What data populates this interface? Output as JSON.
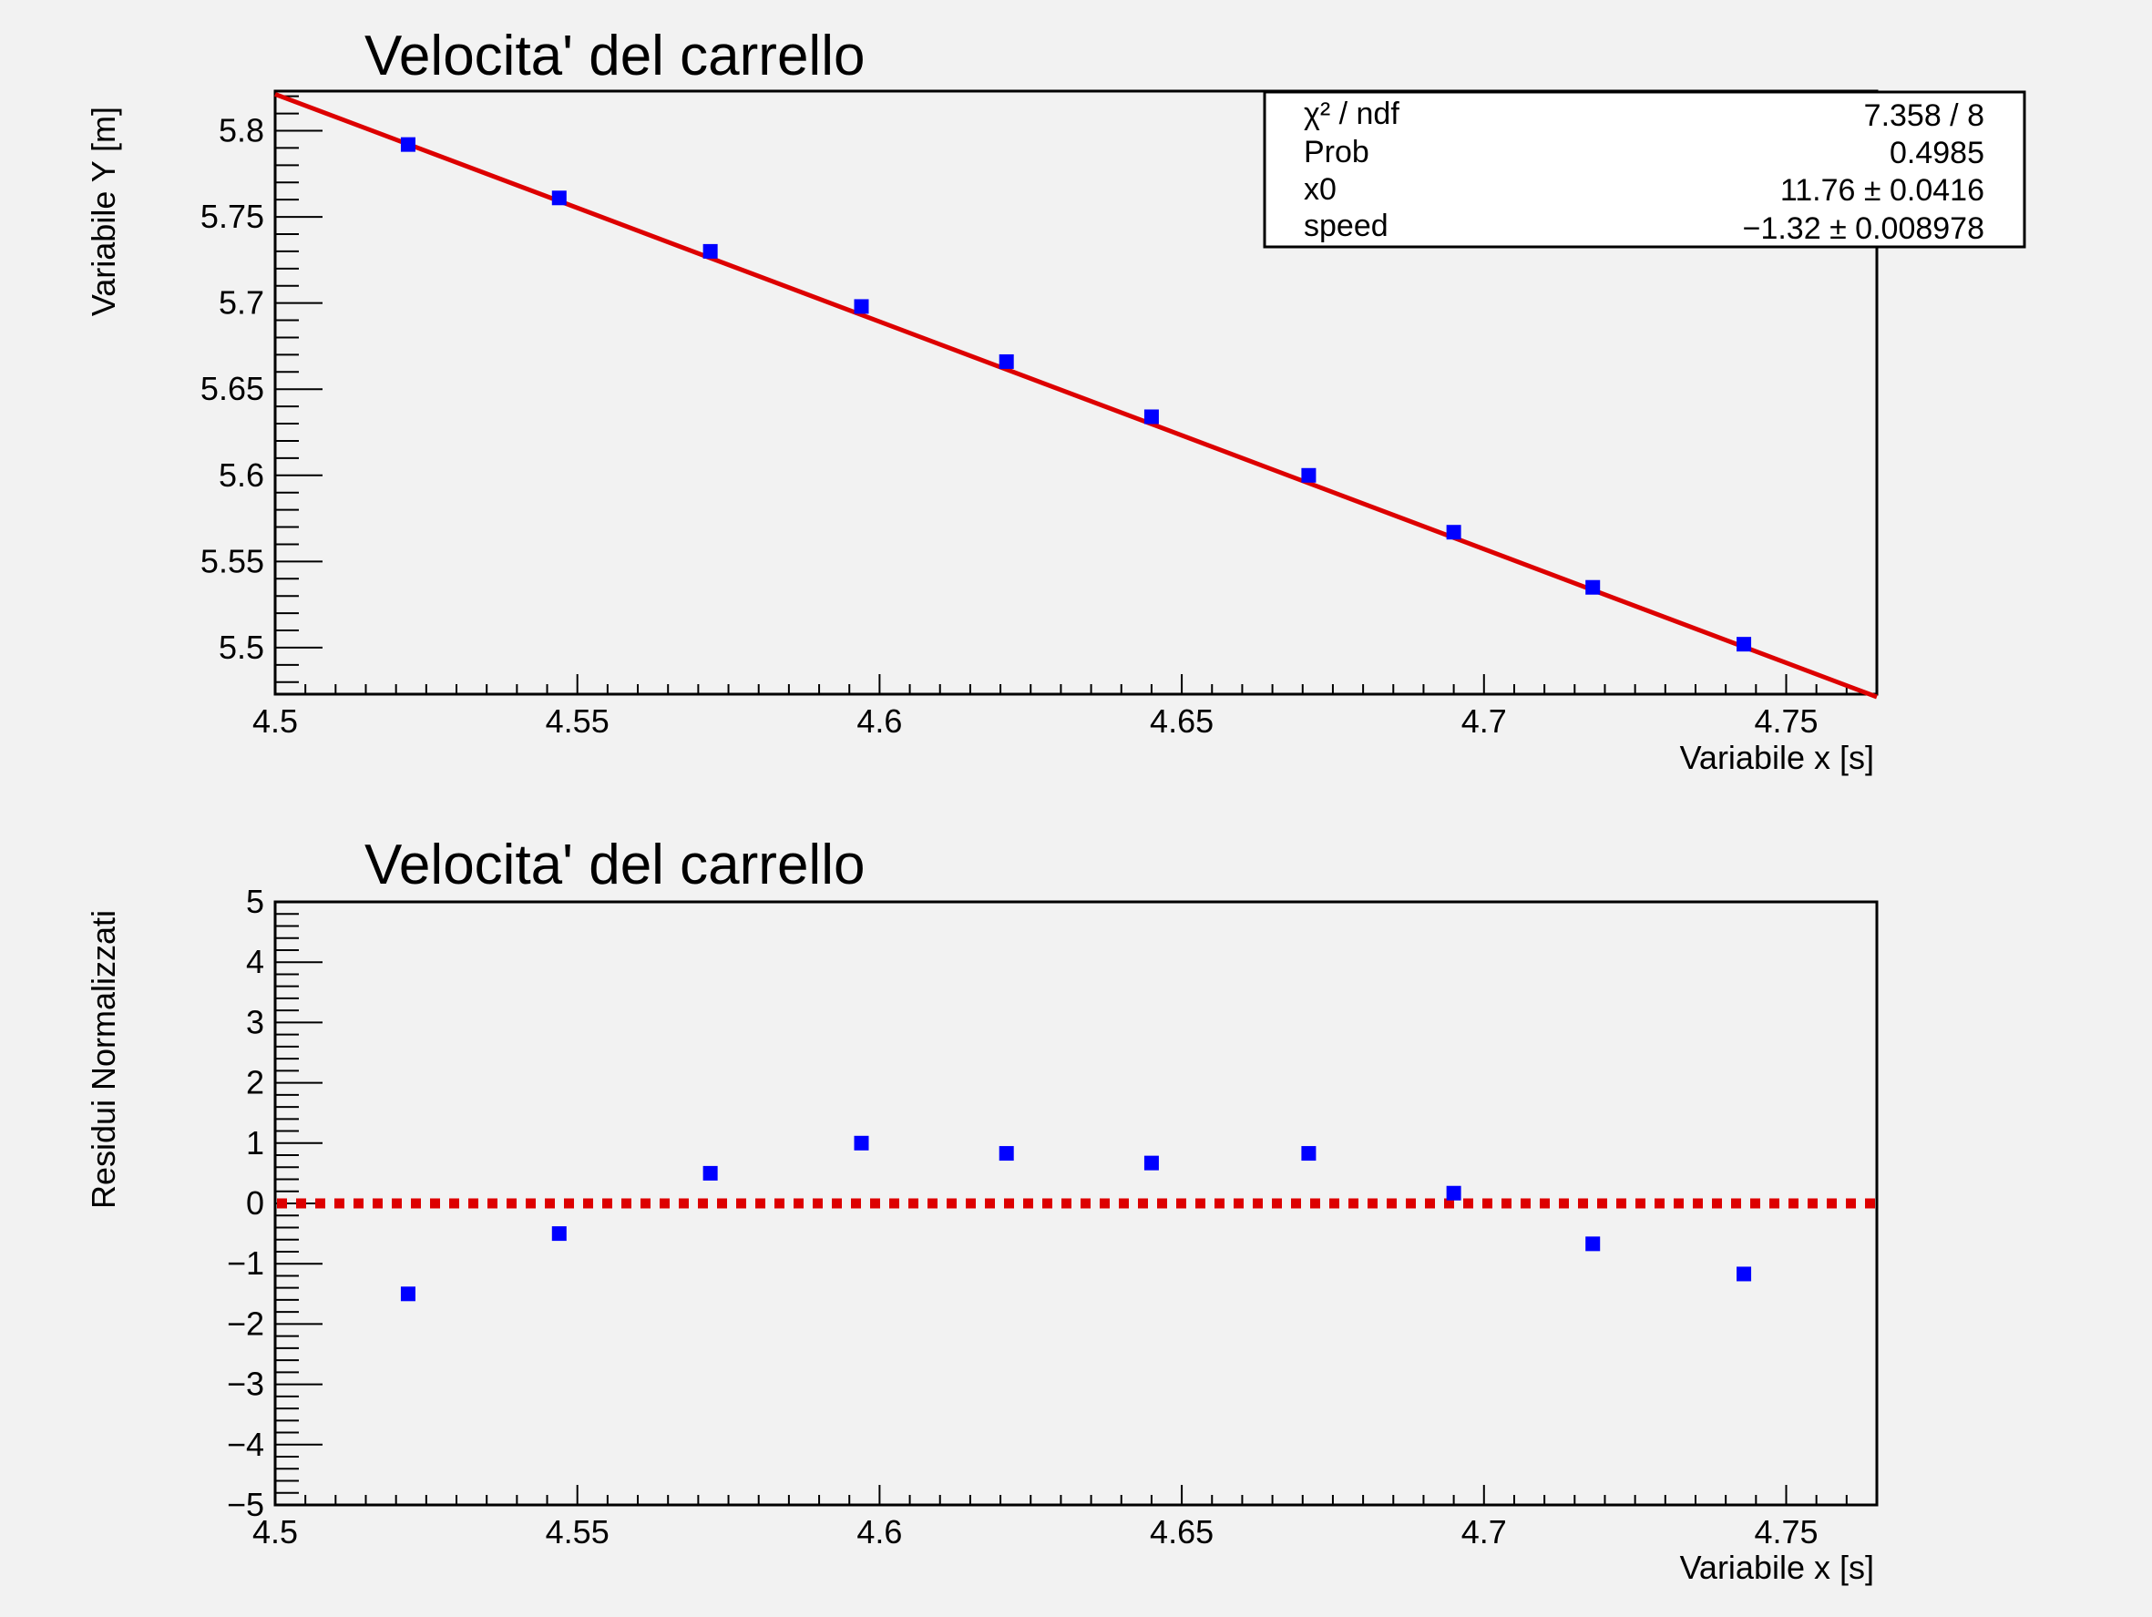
{
  "chart_data": [
    {
      "type": "scatter",
      "title": "Velocita' del carrello",
      "xlabel": "Variabile x [s]",
      "ylabel": "Variabile Y  [m]",
      "xlim": [
        4.5,
        4.765
      ],
      "ylim": [
        5.473,
        5.823
      ],
      "x_ticks": [
        "4.5",
        "4.55",
        "4.6",
        "4.65",
        "4.7",
        "4.75"
      ],
      "y_ticks": [
        "5.5",
        "5.55",
        "5.6",
        "5.65",
        "5.7",
        "5.75",
        "5.8"
      ],
      "series": [
        {
          "marker": "square",
          "color": "#0000ff",
          "x": [
            4.522,
            4.547,
            4.572,
            4.597,
            4.621,
            4.645,
            4.671,
            4.695,
            4.718,
            4.743
          ],
          "y": [
            5.792,
            5.761,
            5.73,
            5.698,
            5.666,
            5.634,
            5.6,
            5.567,
            5.535,
            5.502
          ]
        }
      ],
      "fit_line": {
        "color": "#dd0000",
        "x": [
          4.5,
          4.765
        ],
        "y": [
          5.8212,
          5.4714
        ]
      },
      "stats_box": [
        {
          "label": "χ² / ndf",
          "value": "7.358 / 8"
        },
        {
          "label": "Prob",
          "value": "0.4985"
        },
        {
          "label": "x0",
          "value": "11.76 ± 0.0416"
        },
        {
          "label": "speed",
          "value": "−1.32 ± 0.008978"
        }
      ]
    },
    {
      "type": "scatter",
      "title": "Velocita' del carrello",
      "xlabel": "Variabile x [s]",
      "ylabel": "Residui Normalizzati",
      "xlim": [
        4.5,
        4.765
      ],
      "ylim": [
        -5,
        5
      ],
      "x_ticks": [
        "4.5",
        "4.55",
        "4.6",
        "4.65",
        "4.7",
        "4.75"
      ],
      "y_ticks": [
        "−5",
        "−4",
        "−3",
        "−2",
        "−1",
        "0",
        "1",
        "2",
        "3",
        "4",
        "5"
      ],
      "series": [
        {
          "marker": "square",
          "color": "#0000ff",
          "x": [
            4.522,
            4.547,
            4.572,
            4.597,
            4.621,
            4.645,
            4.671,
            4.695,
            4.718,
            4.743
          ],
          "y": [
            -1.5,
            -0.5,
            0.5,
            1.0,
            0.83,
            0.67,
            0.83,
            0.17,
            -0.67,
            -1.17
          ]
        }
      ],
      "reference_line": {
        "color": "#dd0000",
        "y": 0,
        "style": "dotted"
      }
    }
  ]
}
